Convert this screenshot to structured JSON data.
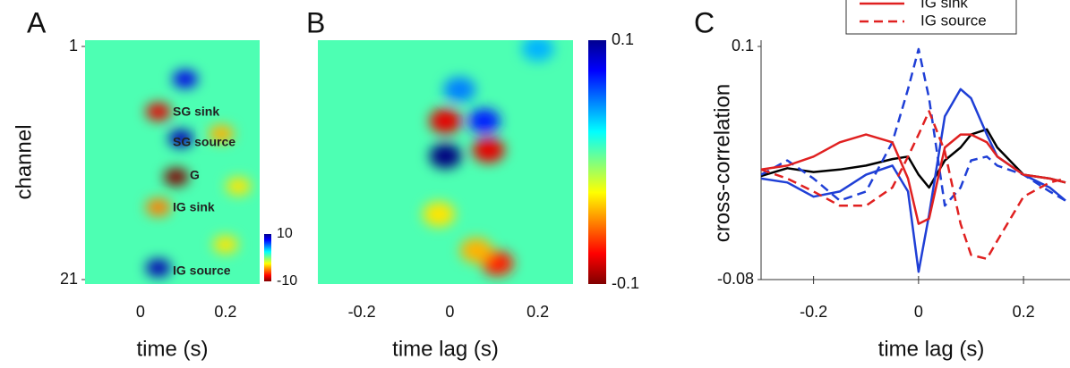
{
  "chart_data": [
    {
      "type": "heatmap",
      "panel": "A",
      "xlabel": "time (s)",
      "ylabel": "channel",
      "xlim": [
        -0.13,
        0.28
      ],
      "xticks": [
        0,
        0.2
      ],
      "ylim": [
        1,
        21
      ],
      "yticks": [
        1,
        21
      ],
      "y_reversed": true,
      "clim": [
        -10,
        10
      ],
      "cticks": [
        10,
        -10
      ],
      "background": 1,
      "points": {
        "x": [
          0.105,
          0.042,
          0.095,
          0.084,
          0.042,
          0.042,
          0.19,
          0.23,
          0.2
        ],
        "y": [
          3.8,
          6.6,
          8.9,
          12.2,
          14.8,
          20,
          8.5,
          13,
          18
        ],
        "values": [
          8,
          -8,
          9,
          -10,
          -5,
          9,
          -4,
          -3,
          -3
        ]
      },
      "annotations": [
        "SG sink",
        "SG source",
        "G",
        "IG sink",
        "IG source"
      ]
    },
    {
      "type": "heatmap",
      "panel": "B",
      "xlabel": "time lag (s)",
      "xlim": [
        -0.3,
        0.28
      ],
      "xticks": [
        -0.2,
        0,
        0.2
      ],
      "ylim": [
        1,
        21
      ],
      "y_reversed": true,
      "clim": [
        -0.1,
        0.1
      ],
      "cticks": [
        0.1,
        -0.1
      ],
      "background": 0.01,
      "points": {
        "x": [
          -0.01,
          0.078,
          -0.01,
          0.088,
          0.022,
          0.108,
          0.2,
          -0.025,
          0.06
        ],
        "y": [
          7.4,
          7.4,
          10.4,
          9.9,
          4.7,
          19.6,
          1.2,
          15.4,
          18.5
        ],
        "values": [
          -0.08,
          0.07,
          0.1,
          -0.08,
          0.05,
          -0.07,
          0.04,
          -0.03,
          -0.04
        ]
      }
    },
    {
      "type": "line",
      "panel": "C",
      "xlabel": "time lag (s)",
      "ylabel": "cross-correlation",
      "xlim": [
        -0.3,
        0.28
      ],
      "xticks": [
        -0.2,
        0,
        0.2
      ],
      "ylim": [
        -0.08,
        0.1
      ],
      "yticks": [
        0.1,
        -0.08
      ],
      "x": [
        -0.3,
        -0.25,
        -0.2,
        -0.15,
        -0.1,
        -0.05,
        -0.02,
        0,
        0.02,
        0.05,
        0.08,
        0.1,
        0.13,
        0.15,
        0.2,
        0.25,
        0.28
      ],
      "series": [
        {
          "color": "#000000",
          "dash": false,
          "values": [
            0.0,
            0.006,
            0.003,
            0.005,
            0.008,
            0.013,
            0.015,
            0.001,
            -0.009,
            0.012,
            0.022,
            0.032,
            0.036,
            0.022,
            0.001,
            -0.002,
            -0.005
          ]
        },
        {
          "color": "#1f3fd6",
          "dash": false,
          "values": [
            -0.002,
            -0.005,
            -0.016,
            -0.012,
            0.001,
            0.008,
            -0.012,
            -0.074,
            -0.03,
            0.046,
            0.067,
            0.06,
            0.032,
            0.015,
            0.001,
            -0.009,
            -0.019
          ]
        },
        {
          "color": "#1f3fd6",
          "dash": true,
          "values": [
            0.001,
            0.012,
            -0.002,
            -0.019,
            -0.012,
            0.026,
            0.067,
            0.098,
            0.06,
            -0.023,
            -0.009,
            0.012,
            0.015,
            0.008,
            0.001,
            -0.012,
            -0.019
          ]
        },
        {
          "name": "IG sink",
          "color": "#e02020",
          "dash": false,
          "values": [
            0.005,
            0.008,
            0.015,
            0.026,
            0.032,
            0.026,
            -0.002,
            -0.037,
            -0.033,
            0.022,
            0.032,
            0.032,
            0.026,
            0.015,
            0.001,
            -0.002,
            -0.005
          ]
        },
        {
          "name": "IG source",
          "color": "#e02020",
          "dash": true,
          "values": [
            0.005,
            -0.002,
            -0.012,
            -0.023,
            -0.023,
            -0.009,
            0.015,
            0.032,
            0.05,
            0.019,
            -0.037,
            -0.061,
            -0.064,
            -0.05,
            -0.016,
            -0.005,
            -0.002
          ]
        }
      ]
    }
  ]
}
